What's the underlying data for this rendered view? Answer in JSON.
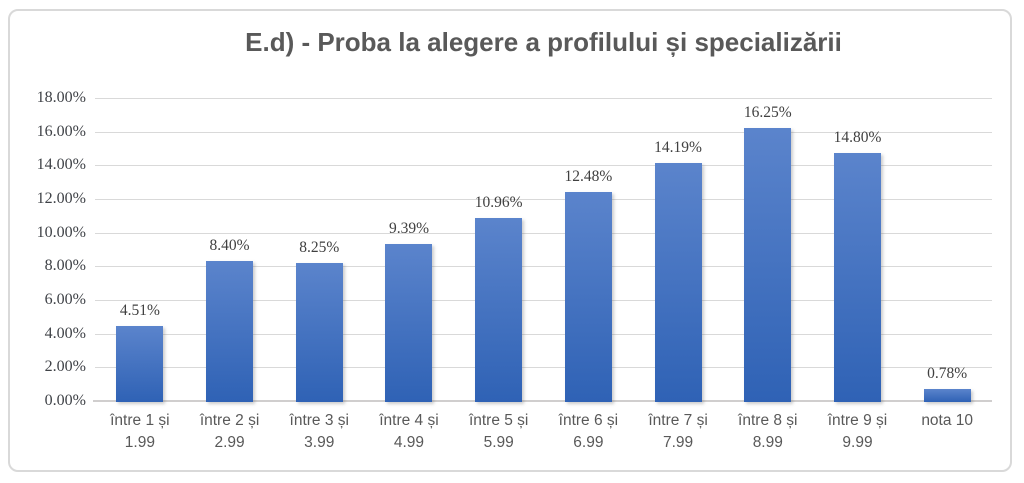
{
  "chart_data": {
    "type": "bar",
    "title": "E.d) - Proba la alegere a profilului și specializării",
    "categories": [
      "între 1 și 1.99",
      "între 2 și 2.99",
      "între 3 și 3.99",
      "între 4 și 4.99",
      "între 5 și 5.99",
      "între 6 și 6.99",
      "între 7 și 7.99",
      "între 8 și 8.99",
      "între 9 și 9.99",
      "nota 10"
    ],
    "category_lines": [
      [
        "între 1 și",
        "1.99"
      ],
      [
        "între 2 și",
        "2.99"
      ],
      [
        "între 3 și",
        "3.99"
      ],
      [
        "între 4 și",
        "4.99"
      ],
      [
        "între 5 și",
        "5.99"
      ],
      [
        "între 6 și",
        "6.99"
      ],
      [
        "între 7 și",
        "7.99"
      ],
      [
        "între 8 și",
        "8.99"
      ],
      [
        "între 9 și",
        "9.99"
      ],
      [
        "nota 10"
      ]
    ],
    "values": [
      4.51,
      8.4,
      8.25,
      9.39,
      10.96,
      12.48,
      14.19,
      16.25,
      14.8,
      0.78
    ],
    "data_labels": [
      "4.51%",
      "8.40%",
      "8.25%",
      "9.39%",
      "10.96%",
      "12.48%",
      "14.19%",
      "16.25%",
      "14.80%",
      "0.78%"
    ],
    "xlabel": "",
    "ylabel": "",
    "y_axis": {
      "min": 0,
      "max": 18,
      "tick_step": 2,
      "tick_labels": [
        "0.00%",
        "2.00%",
        "4.00%",
        "6.00%",
        "8.00%",
        "10.00%",
        "12.00%",
        "14.00%",
        "16.00%",
        "18.00%"
      ]
    },
    "grid": true,
    "legend": false,
    "data_labels_shown": true
  },
  "colors": {
    "bar_gradient_top": "#5b84cc",
    "bar_gradient_bottom": "#2f62b5",
    "gridline": "#d9d9d9",
    "axis_line": "#d0cece",
    "title_text": "#595959",
    "y_tick_text": "#3f4247",
    "x_tick_text": "#595959",
    "data_label_text": "#404040",
    "frame_border": "#d9d9d9",
    "background": "#ffffff"
  }
}
